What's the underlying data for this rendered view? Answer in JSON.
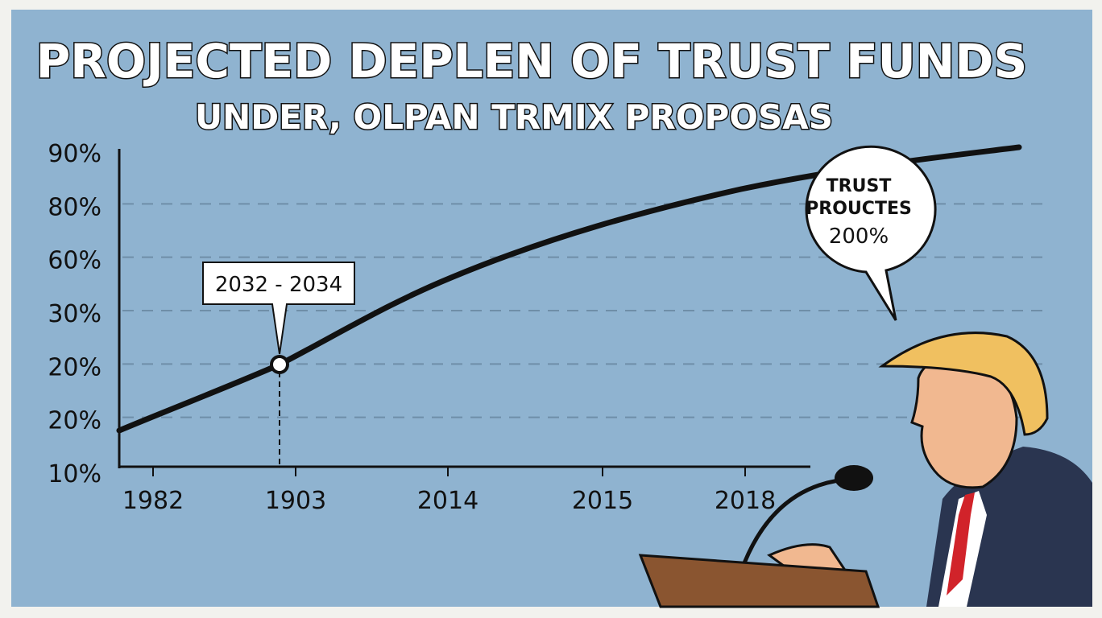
{
  "title": "PROJECTED DEPLEN OF TRUST FUNDS",
  "subtitle": "UNDER, OLPAN TRMIX PROPOSAS",
  "y_axis_labels": [
    "90%",
    "80%",
    "60%",
    "30%",
    "20%",
    "20%",
    "10%"
  ],
  "x_axis_labels": [
    "1982",
    "1903",
    "2014",
    "2015",
    "2018"
  ],
  "annotation": "2032 - 2034",
  "speech_bubble": [
    "TRUST",
    "PROUCTES",
    "200%"
  ]
}
